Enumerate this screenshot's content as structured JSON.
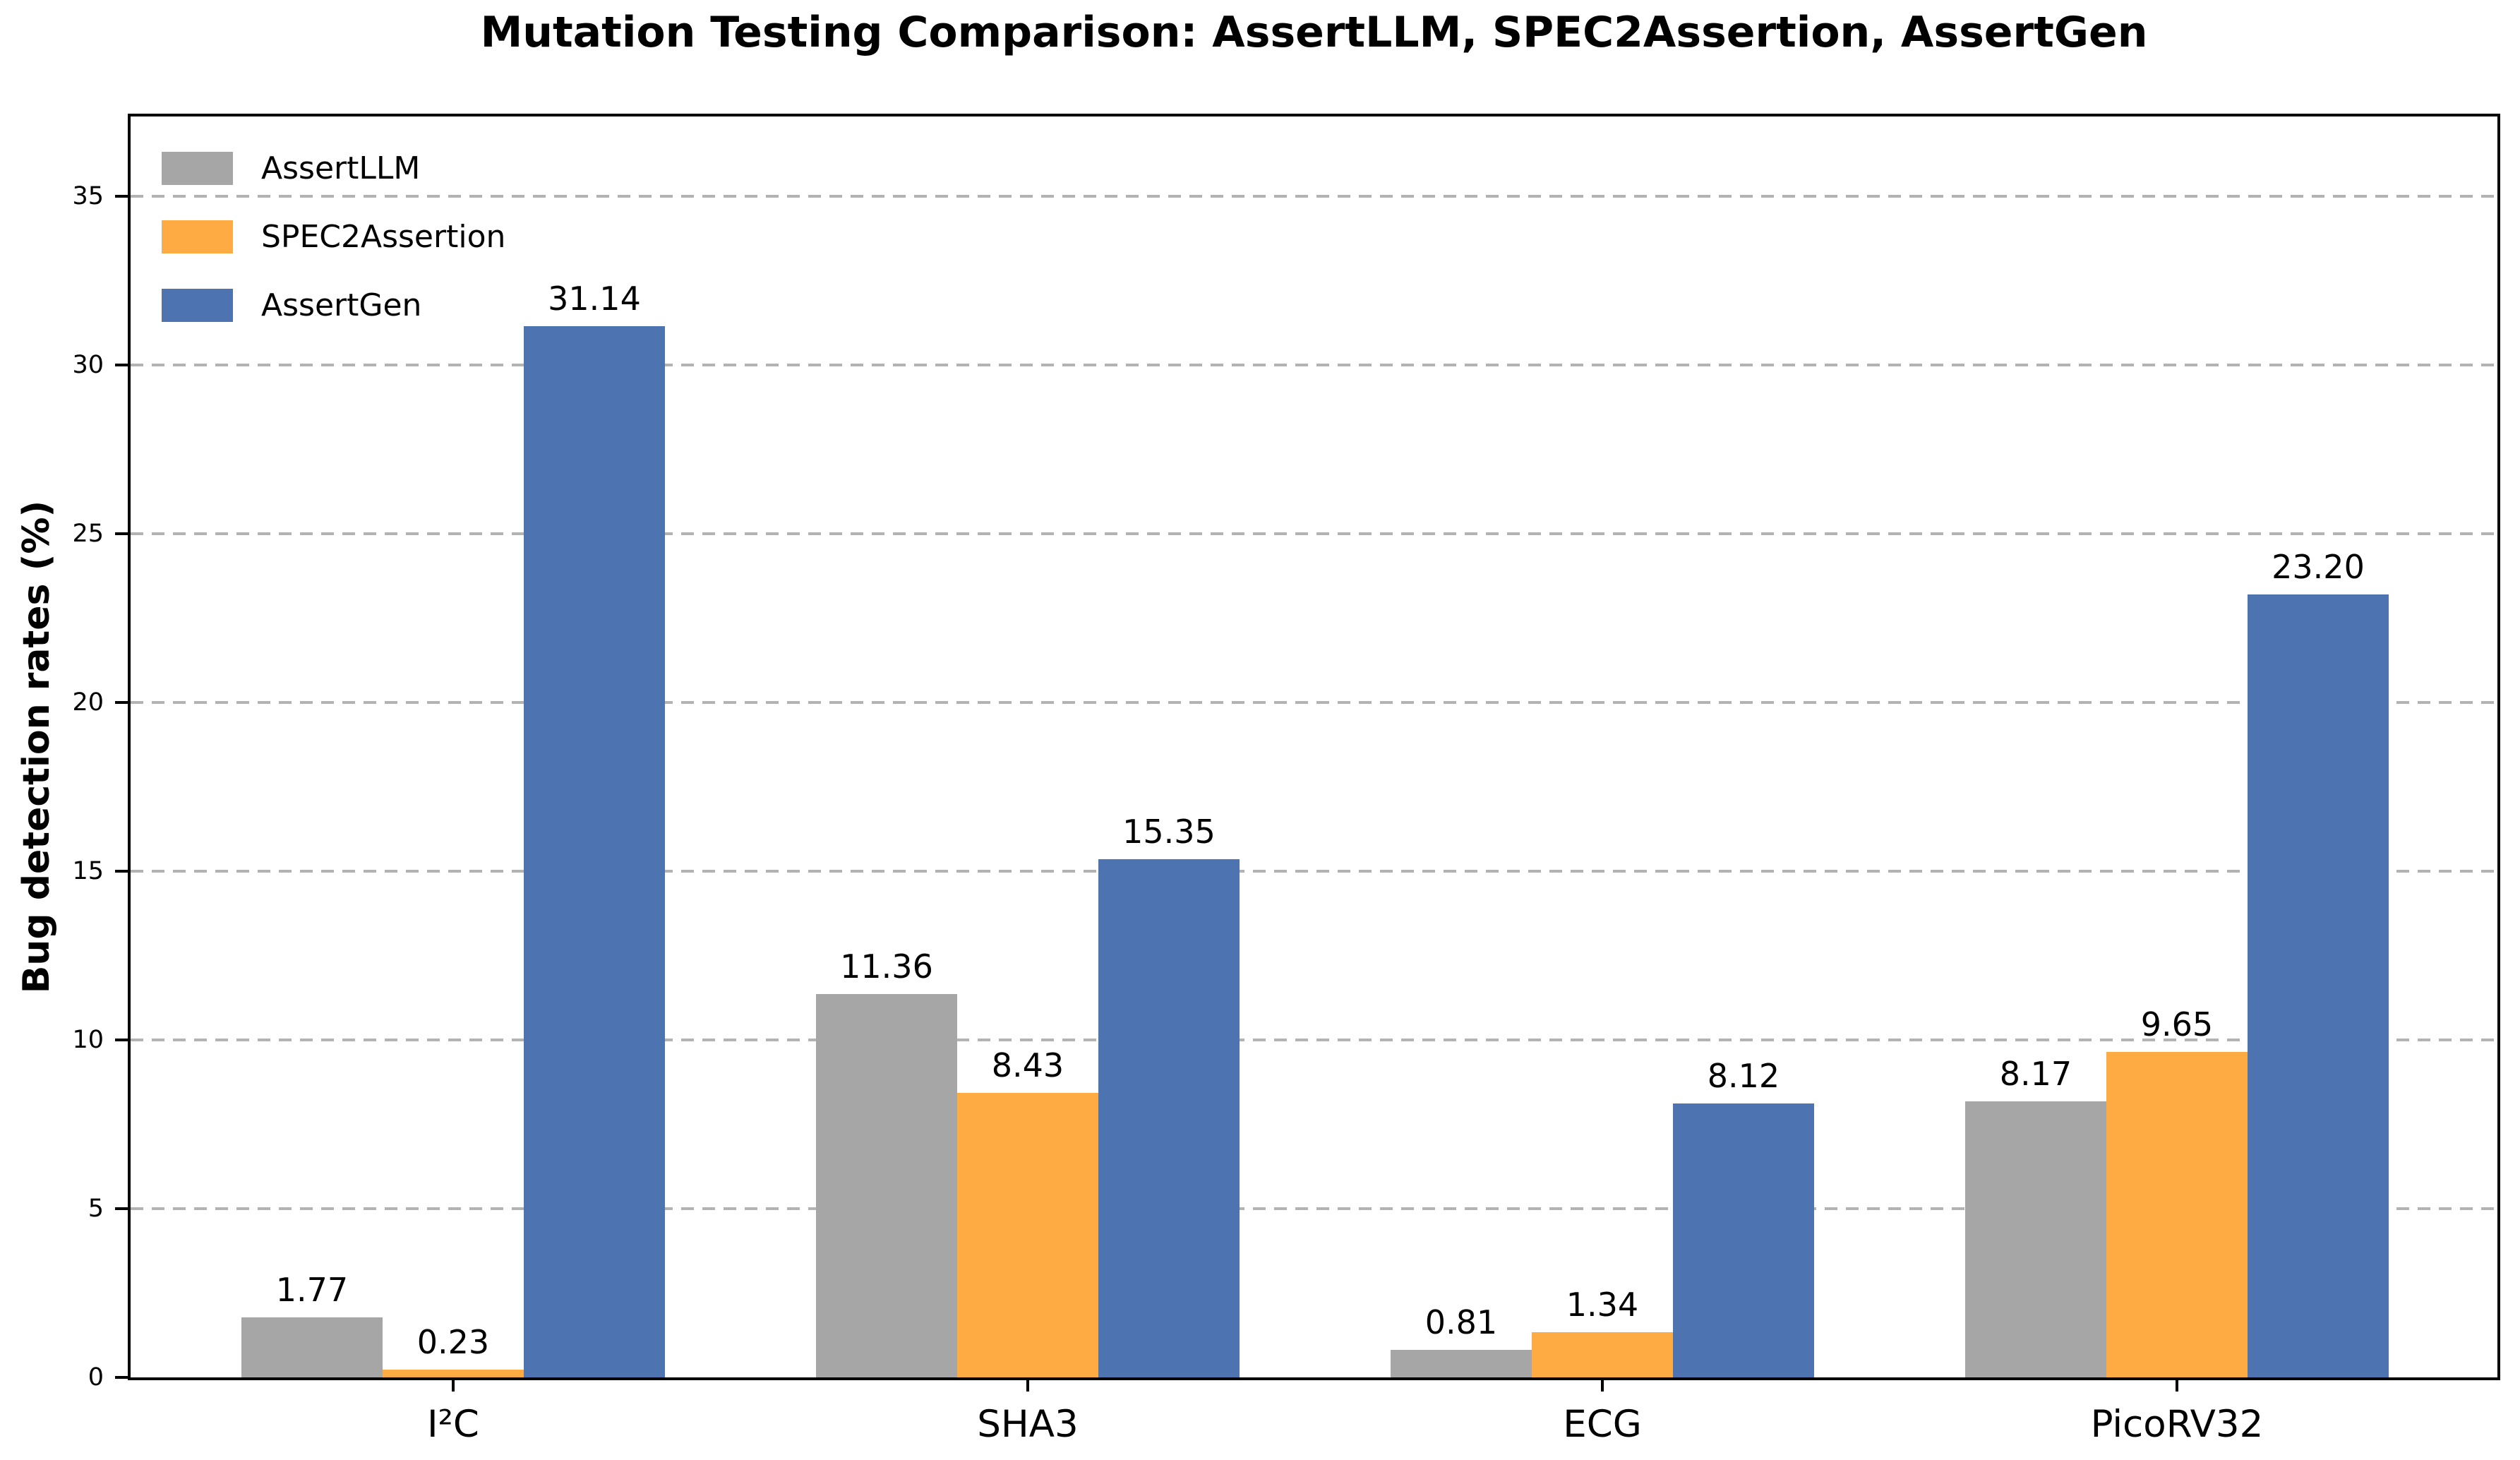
{
  "chart_data": {
    "type": "bar",
    "title": "Mutation Testing Comparison: AssertLLM, SPEC2Assertion, AssertGen",
    "xlabel": "",
    "ylabel": "Bug detection rates (%)",
    "categories": [
      "I²C",
      "SHA3",
      "ECG",
      "PicoRV32"
    ],
    "series": [
      {
        "name": "AssertLLM",
        "color": "#a6a6a6",
        "values": [
          1.77,
          11.36,
          0.81,
          8.17
        ]
      },
      {
        "name": "SPEC2Assertion",
        "color": "#fdab42",
        "values": [
          0.23,
          8.43,
          1.34,
          9.65
        ]
      },
      {
        "name": "AssertGen",
        "color": "#4d73b0",
        "values": [
          31.14,
          15.35,
          8.12,
          23.2
        ]
      }
    ],
    "value_label_decimals": 2,
    "yticks": [
      0,
      5,
      10,
      15,
      20,
      25,
      30,
      35
    ],
    "ylim": [
      0,
      37.36
    ],
    "grid": {
      "axis": "y",
      "linestyle": "dashed",
      "color": "#b3b3b3"
    },
    "legend": {
      "location": "upper left",
      "frame": false
    }
  }
}
